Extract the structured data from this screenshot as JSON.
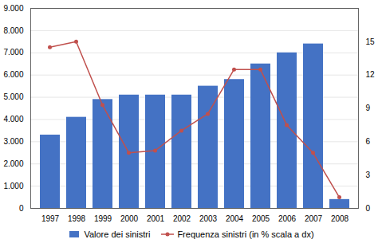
{
  "chart_data": {
    "type": "bar",
    "categories": [
      "1997",
      "1998",
      "1999",
      "2000",
      "2001",
      "2002",
      "2003",
      "2004",
      "2005",
      "2006",
      "2007",
      "2008"
    ],
    "series": [
      {
        "name": "Valore dei sinistri",
        "type": "bar",
        "color": "#4472C4",
        "values": [
          3300,
          4100,
          4900,
          5100,
          5100,
          5100,
          5500,
          5800,
          6500,
          7000,
          7400,
          400
        ]
      },
      {
        "name": "Frequenza sinistri (in % scala a dx)",
        "type": "line",
        "color": "#C0504D",
        "marker": "circle",
        "axis": "y2",
        "values": [
          14.5,
          15.0,
          9.3,
          5.0,
          5.2,
          7.0,
          8.5,
          12.5,
          12.5,
          7.5,
          5.0,
          1.0
        ]
      }
    ],
    "ylim": [
      0,
      9000
    ],
    "yticks": [
      0,
      {
        "value": 1000,
        "label": "1.000"
      },
      {
        "value": 2000,
        "label": "2.000"
      },
      {
        "value": 3000,
        "label": "3.000"
      },
      {
        "value": 4000,
        "label": "4.000"
      },
      {
        "value": 5000,
        "label": "5.000"
      },
      {
        "value": 6000,
        "label": "6.000"
      },
      {
        "value": 7000,
        "label": "7.000"
      },
      {
        "value": 8000,
        "label": "8.000"
      },
      {
        "value": 9000,
        "label": "9.000"
      }
    ],
    "y2lim": [
      0,
      18
    ],
    "y2ticks": [
      0,
      3,
      6,
      9,
      12,
      15
    ],
    "grid": true,
    "legend": "bottom"
  }
}
